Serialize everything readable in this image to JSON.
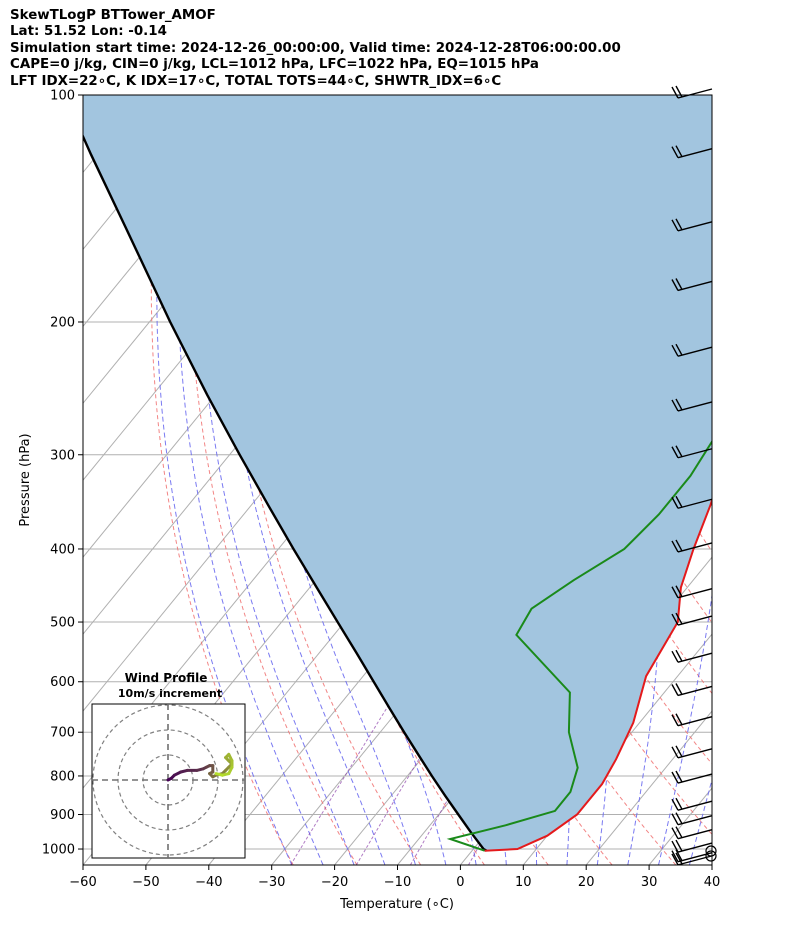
{
  "header": {
    "line1": "SkewTLogP BTTower_AMOF",
    "line2": "Lat: 51.52   Lon: -0.14",
    "line3": "Simulation start time: 2024-12-26_00:00:00, Valid time: 2024-12-28T06:00:00.00",
    "line4": "CAPE=0 j/kg, CIN=0 j/kg, LCL=1012 hPa, LFC=1022 hPa, EQ=1015 hPa",
    "line5": "LFT IDX=22∘C, K IDX=17∘C, TOTAL TOTS=44∘C, SHWTR_IDX=6∘C"
  },
  "chart_data": {
    "type": "line",
    "subtype": "skew-t log-p",
    "xlabel": "Temperature (∘C)",
    "ylabel": "Pressure (hPa)",
    "xlim": [
      -60,
      40
    ],
    "ylim": [
      1050,
      100
    ],
    "y_scale": "log",
    "x_ticks": [
      "−60",
      "−50",
      "−40",
      "−30",
      "−20",
      "−10",
      "0",
      "10",
      "20",
      "30",
      "40"
    ],
    "y_ticks": [
      "100",
      "200",
      "300",
      "400",
      "500",
      "600",
      "700",
      "800",
      "900",
      "1000"
    ],
    "grid": true,
    "colors": {
      "temperature": "#e41a1c",
      "dewpoint": "#1a8a1a",
      "parcel": "#000000",
      "cape_fill": "#a2c5df",
      "isotherm": "#b0b0b0",
      "dry_adiabat": "#f07070",
      "moist_adiabat": "#6c6cf0",
      "mixing_ratio": "#8e44ad"
    },
    "series": [
      {
        "key": "temperature",
        "points": [
          [
            2,
            1005
          ],
          [
            7,
            1000
          ],
          [
            10,
            960
          ],
          [
            12,
            900
          ],
          [
            12,
            820
          ],
          [
            11,
            760
          ],
          [
            9,
            680
          ],
          [
            5,
            590
          ],
          [
            3,
            500
          ],
          [
            -1,
            450
          ],
          [
            -4,
            400
          ],
          [
            -7,
            350
          ],
          [
            -11,
            300
          ],
          [
            -14,
            260
          ],
          [
            -17,
            230
          ],
          [
            -20,
            200
          ],
          [
            -19,
            180
          ],
          [
            -15,
            160
          ],
          [
            -7,
            140
          ],
          [
            -1,
            125
          ],
          [
            3,
            110
          ],
          [
            5,
            100
          ]
        ]
      },
      {
        "key": "dewpoint",
        "points": [
          [
            2,
            1005
          ],
          [
            -5,
            970
          ],
          [
            2,
            930
          ],
          [
            8,
            890
          ],
          [
            8,
            840
          ],
          [
            6,
            780
          ],
          [
            0,
            700
          ],
          [
            -5,
            620
          ],
          [
            -21,
            520
          ],
          [
            -22,
            480
          ],
          [
            -19,
            440
          ],
          [
            -15,
            400
          ],
          [
            -14,
            360
          ],
          [
            -14,
            320
          ],
          [
            -16,
            260
          ],
          [
            -20,
            220
          ],
          [
            -21,
            190
          ],
          [
            -19,
            170
          ],
          [
            -17,
            155
          ],
          [
            -17,
            140
          ],
          [
            -13,
            120
          ],
          [
            -9,
            105
          ],
          [
            -7,
            100
          ]
        ]
      },
      {
        "key": "parcel",
        "pressures": [
          1005,
          1000,
          950,
          900,
          850,
          800,
          750,
          700,
          650,
          600,
          550,
          500,
          450,
          400,
          350,
          300,
          250,
          200,
          150,
          120,
          100
        ],
        "values": [
          2.3,
          1.6,
          -2.6,
          -6.9,
          -11.4,
          -16.1,
          -21.0,
          -26.2,
          -31.7,
          -37.6,
          -44.0,
          -51.1,
          -58.9,
          -67.6,
          -77.3,
          -88.4,
          -101.3,
          -116.7,
          -136.0,
          -151.0,
          -163.0
        ]
      }
    ],
    "inset": {
      "title": "Wind Profile",
      "subtitle": "10m/s increment",
      "hodograph_uv": [
        [
          0,
          0
        ],
        [
          1,
          0.5
        ],
        [
          2,
          1.5
        ],
        [
          4,
          2.5
        ],
        [
          6,
          3
        ],
        [
          9,
          3
        ],
        [
          11,
          3.5
        ],
        [
          12,
          4
        ],
        [
          13,
          4.5
        ],
        [
          14,
          4.5
        ],
        [
          14,
          2.5
        ],
        [
          13,
          2
        ],
        [
          14,
          1
        ],
        [
          15,
          1.5
        ],
        [
          17,
          2
        ],
        [
          18,
          3
        ],
        [
          19,
          4
        ],
        [
          20,
          5
        ],
        [
          19,
          6
        ],
        [
          18,
          7
        ],
        [
          19,
          8
        ],
        [
          20,
          6
        ],
        [
          20,
          4
        ],
        [
          19,
          2
        ],
        [
          17,
          1.5
        ],
        [
          15,
          2
        ]
      ]
    },
    "wind_barbs_pressures": [
      1040,
      1030,
      1000,
      960,
      920,
      880,
      810,
      750,
      680,
      620,
      560,
      500,
      460,
      400,
      350,
      300,
      260,
      220,
      180,
      150,
      120,
      100
    ]
  }
}
